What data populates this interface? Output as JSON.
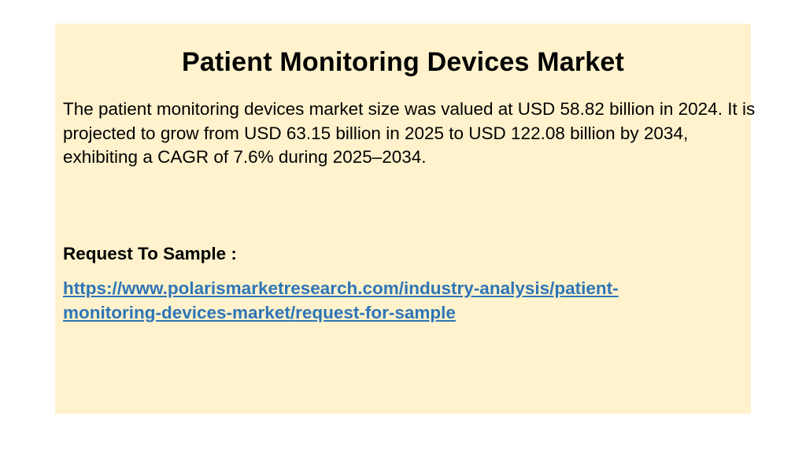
{
  "slide": {
    "title": "Patient Monitoring Devices Market",
    "description": "The patient monitoring devices market size was valued at USD 58.82 billion in 2024. It is projected to grow from USD 63.15 billion in 2025 to USD 122.08 billion by 2034, exhibiting a CAGR of 7.6% during 2025–2034.",
    "request_label": "Request To Sample :",
    "request_link_line1": "https://www.polarismarketresearch.com/industry-analysis/patient-",
    "request_link_line2": "monitoring-devices-market/request-for-sample"
  },
  "colors": {
    "panel_background": "#fff2cc",
    "link": "#2e75b6"
  }
}
